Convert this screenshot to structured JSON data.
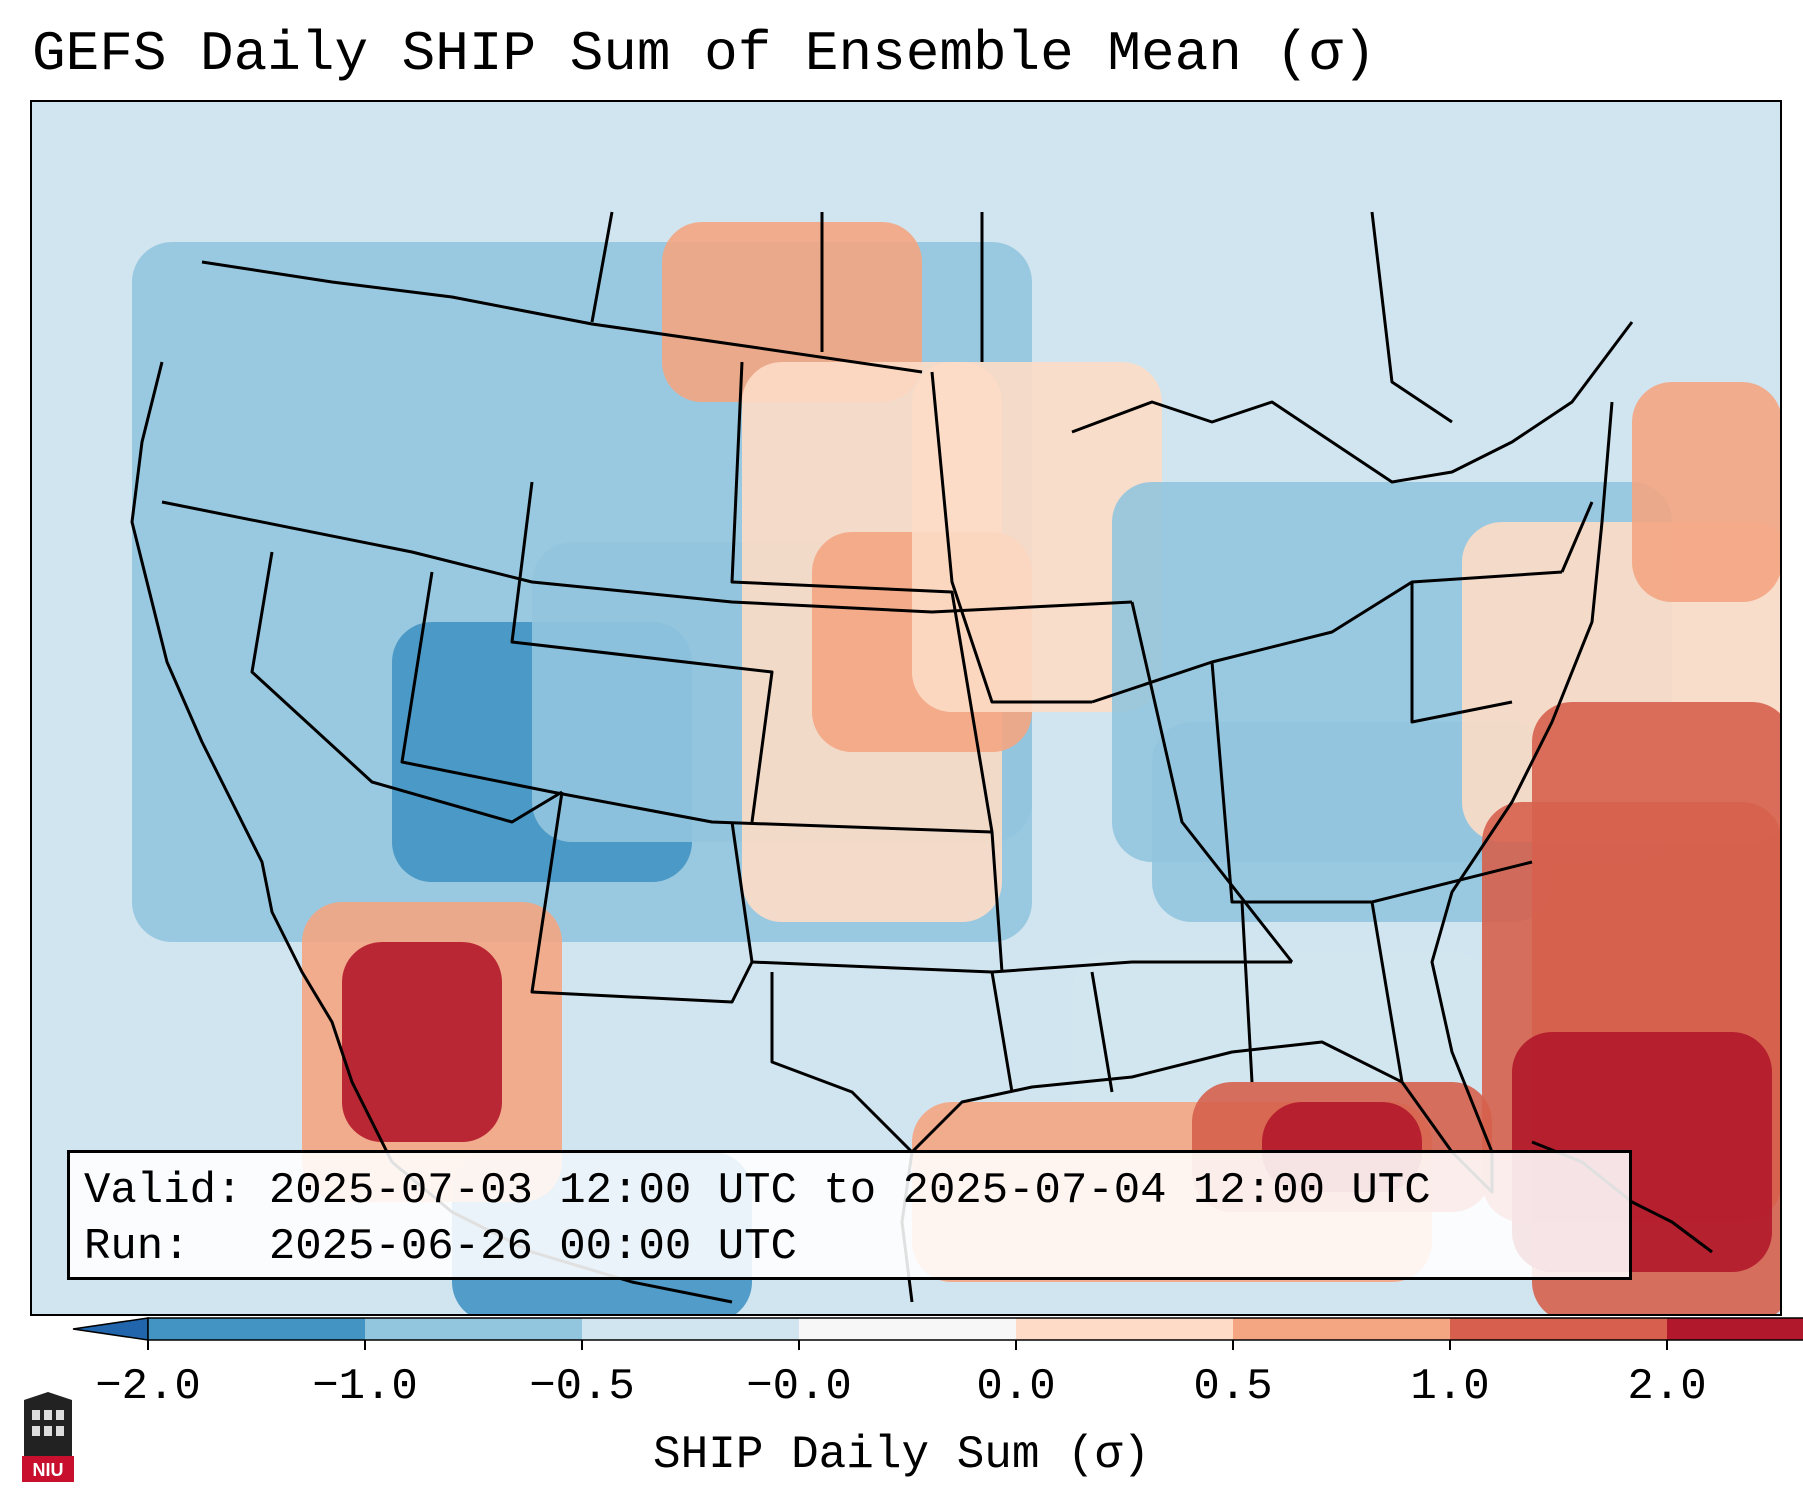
{
  "title": "GEFS Daily SHIP Sum of Ensemble Mean (σ)",
  "valid_line": "Valid: 2025-07-03 12:00 UTC to 2025-07-04 12:00 UTC",
  "run_line": "Run:   2025-06-26 00:00 UTC",
  "colorbar": {
    "label": "SHIP Daily Sum (σ)",
    "ticks": [
      "−2.0",
      "−1.0",
      "−0.5",
      "−0.0",
      "0.0",
      "0.5",
      "1.0",
      "2.0"
    ],
    "bin_colors": [
      "#4393c3",
      "#92c5de",
      "#d1e5f0",
      "#f7f7f7",
      "#fddbc7",
      "#f4a582",
      "#d6604d",
      "#b2182b"
    ],
    "extend_low_color": "#2166ac",
    "extend_high_color": "#b2182b"
  },
  "map_colors": {
    "ocean_background": "#d1e5f0",
    "coastline": "#000000"
  },
  "logo": {
    "text": "NIU",
    "name": "niu-logo-icon"
  }
}
